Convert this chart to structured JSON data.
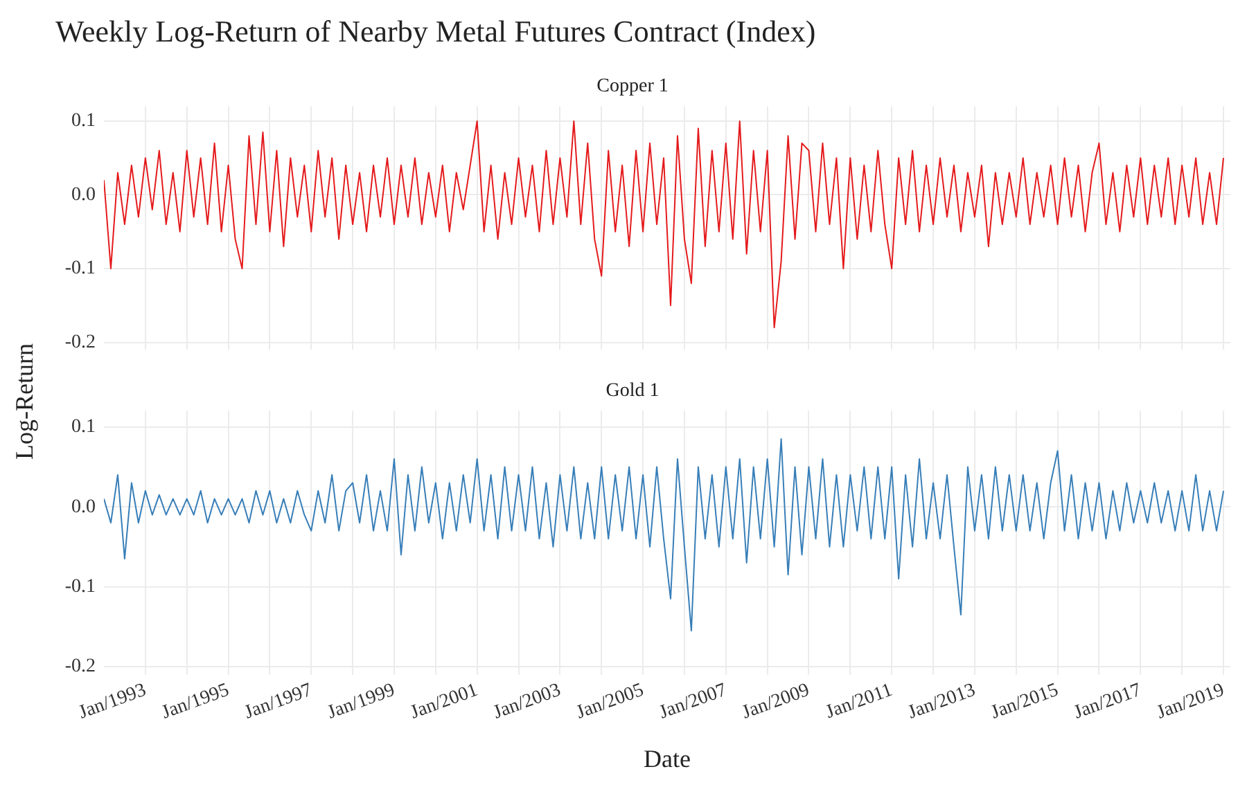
{
  "chart_data": [
    {
      "type": "line",
      "title": "Weekly Log-Return of Nearby Metal Futures Contract (Index)",
      "subtitle": "Copper 1",
      "tick_labels": "y",
      "grid": true,
      "xlim": [
        "1992-01",
        "2019-03"
      ],
      "xticks": [
        {
          "value": "1993-01",
          "label": null
        },
        {
          "value": "1994-01",
          "label": null
        },
        {
          "value": "1995-01",
          "label": null
        },
        {
          "value": "1996-01",
          "label": null
        },
        {
          "value": "1997-01",
          "label": null
        },
        {
          "value": "1998-01",
          "label": null
        },
        {
          "value": "1999-01",
          "label": null
        },
        {
          "value": "2000-01",
          "label": null
        },
        {
          "value": "2001-01",
          "label": null
        },
        {
          "value": "2002-01",
          "label": null
        },
        {
          "value": "2003-01",
          "label": null
        },
        {
          "value": "2004-01",
          "label": null
        },
        {
          "value": "2005-01",
          "label": null
        },
        {
          "value": "2006-01",
          "label": null
        },
        {
          "value": "2007-01",
          "label": null
        },
        {
          "value": "2008-01",
          "label": null
        },
        {
          "value": "2009-01",
          "label": null
        },
        {
          "value": "2010-01",
          "label": null
        },
        {
          "value": "2011-01",
          "label": null
        },
        {
          "value": "2012-01",
          "label": null
        },
        {
          "value": "2013-01",
          "label": null
        },
        {
          "value": "2014-01",
          "label": null
        },
        {
          "value": "2015-01",
          "label": null
        },
        {
          "value": "2016-01",
          "label": null
        },
        {
          "value": "2017-01",
          "label": null
        },
        {
          "value": "2018-01",
          "label": null
        },
        {
          "value": "2019-01",
          "label": null
        }
      ],
      "ylim": [
        -0.21,
        0.12
      ],
      "yticks": [
        {
          "value": -0.2,
          "label": "-0.2"
        },
        {
          "value": -0.1,
          "label": "-0.1"
        },
        {
          "value": 0,
          "label": "0.0"
        },
        {
          "value": 0.1,
          "label": "0.1"
        }
      ],
      "x": [
        "1992-01",
        "1992-03",
        "1992-05",
        "1992-07",
        "1992-09",
        "1992-11",
        "1993-01",
        "1993-03",
        "1993-05",
        "1993-07",
        "1993-09",
        "1993-11",
        "1994-01",
        "1994-03",
        "1994-05",
        "1994-07",
        "1994-09",
        "1994-11",
        "1995-01",
        "1995-03",
        "1995-05",
        "1995-07",
        "1995-09",
        "1995-11",
        "1996-01",
        "1996-03",
        "1996-05",
        "1996-07",
        "1996-09",
        "1996-11",
        "1997-01",
        "1997-03",
        "1997-05",
        "1997-07",
        "1997-09",
        "1997-11",
        "1998-01",
        "1998-03",
        "1998-05",
        "1998-07",
        "1998-09",
        "1998-11",
        "1999-01",
        "1999-03",
        "1999-05",
        "1999-07",
        "1999-09",
        "1999-11",
        "2000-01",
        "2000-03",
        "2000-05",
        "2000-07",
        "2000-09",
        "2000-11",
        "2001-01",
        "2001-03",
        "2001-05",
        "2001-07",
        "2001-09",
        "2001-11",
        "2002-01",
        "2002-03",
        "2002-05",
        "2002-07",
        "2002-09",
        "2002-11",
        "2003-01",
        "2003-03",
        "2003-05",
        "2003-07",
        "2003-09",
        "2003-11",
        "2004-01",
        "2004-03",
        "2004-05",
        "2004-07",
        "2004-09",
        "2004-11",
        "2005-01",
        "2005-03",
        "2005-05",
        "2005-07",
        "2005-09",
        "2005-11",
        "2006-01",
        "2006-03",
        "2006-05",
        "2006-07",
        "2006-09",
        "2006-11",
        "2007-01",
        "2007-03",
        "2007-05",
        "2007-07",
        "2007-09",
        "2007-11",
        "2008-01",
        "2008-03",
        "2008-05",
        "2008-07",
        "2008-09",
        "2008-11",
        "2009-01",
        "2009-03",
        "2009-05",
        "2009-07",
        "2009-09",
        "2009-11",
        "2010-01",
        "2010-03",
        "2010-05",
        "2010-07",
        "2010-09",
        "2010-11",
        "2011-01",
        "2011-03",
        "2011-05",
        "2011-07",
        "2011-09",
        "2011-11",
        "2012-01",
        "2012-03",
        "2012-05",
        "2012-07",
        "2012-09",
        "2012-11",
        "2013-01",
        "2013-03",
        "2013-05",
        "2013-07",
        "2013-09",
        "2013-11",
        "2014-01",
        "2014-03",
        "2014-05",
        "2014-07",
        "2014-09",
        "2014-11",
        "2015-01",
        "2015-03",
        "2015-05",
        "2015-07",
        "2015-09",
        "2015-11",
        "2016-01",
        "2016-03",
        "2016-05",
        "2016-07",
        "2016-09",
        "2016-11",
        "2017-01",
        "2017-03",
        "2017-05",
        "2017-07",
        "2017-09",
        "2017-11",
        "2018-01",
        "2018-03",
        "2018-05",
        "2018-07",
        "2018-09",
        "2018-11",
        "2019-01"
      ],
      "series": [
        {
          "color": "#e41a1c",
          "values": [
            0.02,
            -0.1,
            0.03,
            -0.04,
            0.04,
            -0.03,
            0.05,
            -0.02,
            0.06,
            -0.04,
            0.03,
            -0.05,
            0.06,
            -0.03,
            0.05,
            -0.04,
            0.07,
            -0.05,
            0.04,
            -0.06,
            -0.1,
            0.08,
            -0.04,
            0.085,
            -0.05,
            0.06,
            -0.07,
            0.05,
            -0.03,
            0.04,
            -0.05,
            0.06,
            -0.03,
            0.05,
            -0.06,
            0.04,
            -0.04,
            0.03,
            -0.05,
            0.04,
            -0.03,
            0.05,
            -0.04,
            0.04,
            -0.03,
            0.05,
            -0.04,
            0.03,
            -0.03,
            0.04,
            -0.05,
            0.03,
            -0.02,
            0.04,
            0.1,
            -0.05,
            0.04,
            -0.06,
            0.03,
            -0.04,
            0.05,
            -0.03,
            0.04,
            -0.05,
            0.06,
            -0.04,
            0.05,
            -0.03,
            0.1,
            -0.04,
            0.07,
            -0.06,
            -0.11,
            0.06,
            -0.05,
            0.04,
            -0.07,
            0.06,
            -0.05,
            0.07,
            -0.04,
            0.05,
            -0.15,
            0.08,
            -0.06,
            -0.12,
            0.09,
            -0.07,
            0.06,
            -0.05,
            0.07,
            -0.06,
            0.1,
            -0.08,
            0.06,
            -0.05,
            0.06,
            -0.18,
            -0.09,
            0.08,
            -0.06,
            0.07,
            0.06,
            -0.05,
            0.07,
            -0.04,
            0.05,
            -0.1,
            0.05,
            -0.06,
            0.04,
            -0.05,
            0.06,
            -0.04,
            -0.1,
            0.05,
            -0.04,
            0.06,
            -0.05,
            0.04,
            -0.04,
            0.05,
            -0.03,
            0.04,
            -0.05,
            0.03,
            -0.03,
            0.04,
            -0.07,
            0.03,
            -0.04,
            0.03,
            -0.03,
            0.05,
            -0.04,
            0.03,
            -0.03,
            0.04,
            -0.04,
            0.05,
            -0.03,
            0.04,
            -0.05,
            0.03,
            0.07,
            -0.04,
            0.03,
            -0.05,
            0.04,
            -0.03,
            0.05,
            -0.04,
            0.04,
            -0.03,
            0.05,
            -0.04,
            0.04,
            -0.03,
            0.05,
            -0.04,
            0.03,
            -0.04,
            0.05
          ]
        }
      ]
    },
    {
      "type": "line",
      "title": "Gold 1",
      "xlabel": "Date",
      "ylabel": "Log-Return",
      "grid": true,
      "xlim": [
        "1992-01",
        "2019-03"
      ],
      "xticks": [
        {
          "value": "1993-01",
          "label": "Jan/1993"
        },
        {
          "value": "1994-01",
          "label": null
        },
        {
          "value": "1995-01",
          "label": "Jan/1995"
        },
        {
          "value": "1996-01",
          "label": null
        },
        {
          "value": "1997-01",
          "label": "Jan/1997"
        },
        {
          "value": "1998-01",
          "label": null
        },
        {
          "value": "1999-01",
          "label": "Jan/1999"
        },
        {
          "value": "2000-01",
          "label": null
        },
        {
          "value": "2001-01",
          "label": "Jan/2001"
        },
        {
          "value": "2002-01",
          "label": null
        },
        {
          "value": "2003-01",
          "label": "Jan/2003"
        },
        {
          "value": "2004-01",
          "label": null
        },
        {
          "value": "2005-01",
          "label": "Jan/2005"
        },
        {
          "value": "2006-01",
          "label": null
        },
        {
          "value": "2007-01",
          "label": "Jan/2007"
        },
        {
          "value": "2008-01",
          "label": null
        },
        {
          "value": "2009-01",
          "label": "Jan/2009"
        },
        {
          "value": "2010-01",
          "label": null
        },
        {
          "value": "2011-01",
          "label": "Jan/2011"
        },
        {
          "value": "2012-01",
          "label": null
        },
        {
          "value": "2013-01",
          "label": "Jan/2013"
        },
        {
          "value": "2014-01",
          "label": null
        },
        {
          "value": "2015-01",
          "label": "Jan/2015"
        },
        {
          "value": "2016-01",
          "label": null
        },
        {
          "value": "2017-01",
          "label": "Jan/2017"
        },
        {
          "value": "2018-01",
          "label": null
        },
        {
          "value": "2019-01",
          "label": "Jan/2019"
        }
      ],
      "ylim": [
        -0.21,
        0.12
      ],
      "yticks": [
        {
          "value": -0.2,
          "label": "-0.2"
        },
        {
          "value": -0.1,
          "label": "-0.1"
        },
        {
          "value": 0,
          "label": "0.0"
        },
        {
          "value": 0.1,
          "label": "0.1"
        }
      ],
      "x": [
        "1992-01",
        "1992-03",
        "1992-05",
        "1992-07",
        "1992-09",
        "1992-11",
        "1993-01",
        "1993-03",
        "1993-05",
        "1993-07",
        "1993-09",
        "1993-11",
        "1994-01",
        "1994-03",
        "1994-05",
        "1994-07",
        "1994-09",
        "1994-11",
        "1995-01",
        "1995-03",
        "1995-05",
        "1995-07",
        "1995-09",
        "1995-11",
        "1996-01",
        "1996-03",
        "1996-05",
        "1996-07",
        "1996-09",
        "1996-11",
        "1997-01",
        "1997-03",
        "1997-05",
        "1997-07",
        "1997-09",
        "1997-11",
        "1998-01",
        "1998-03",
        "1998-05",
        "1998-07",
        "1998-09",
        "1998-11",
        "1999-01",
        "1999-03",
        "1999-05",
        "1999-07",
        "1999-09",
        "1999-11",
        "2000-01",
        "2000-03",
        "2000-05",
        "2000-07",
        "2000-09",
        "2000-11",
        "2001-01",
        "2001-03",
        "2001-05",
        "2001-07",
        "2001-09",
        "2001-11",
        "2002-01",
        "2002-03",
        "2002-05",
        "2002-07",
        "2002-09",
        "2002-11",
        "2003-01",
        "2003-03",
        "2003-05",
        "2003-07",
        "2003-09",
        "2003-11",
        "2004-01",
        "2004-03",
        "2004-05",
        "2004-07",
        "2004-09",
        "2004-11",
        "2005-01",
        "2005-03",
        "2005-05",
        "2005-07",
        "2005-09",
        "2005-11",
        "2006-01",
        "2006-03",
        "2006-05",
        "2006-07",
        "2006-09",
        "2006-11",
        "2007-01",
        "2007-03",
        "2007-05",
        "2007-07",
        "2007-09",
        "2007-11",
        "2008-01",
        "2008-03",
        "2008-05",
        "2008-07",
        "2008-09",
        "2008-11",
        "2009-01",
        "2009-03",
        "2009-05",
        "2009-07",
        "2009-09",
        "2009-11",
        "2010-01",
        "2010-03",
        "2010-05",
        "2010-07",
        "2010-09",
        "2010-11",
        "2011-01",
        "2011-03",
        "2011-05",
        "2011-07",
        "2011-09",
        "2011-11",
        "2012-01",
        "2012-03",
        "2012-05",
        "2012-07",
        "2012-09",
        "2012-11",
        "2013-01",
        "2013-03",
        "2013-05",
        "2013-07",
        "2013-09",
        "2013-11",
        "2014-01",
        "2014-03",
        "2014-05",
        "2014-07",
        "2014-09",
        "2014-11",
        "2015-01",
        "2015-03",
        "2015-05",
        "2015-07",
        "2015-09",
        "2015-11",
        "2016-01",
        "2016-03",
        "2016-05",
        "2016-07",
        "2016-09",
        "2016-11",
        "2017-01",
        "2017-03",
        "2017-05",
        "2017-07",
        "2017-09",
        "2017-11",
        "2018-01",
        "2018-03",
        "2018-05",
        "2018-07",
        "2018-09",
        "2018-11",
        "2019-01"
      ],
      "series": [
        {
          "color": "#377eb8",
          "values": [
            0.01,
            -0.02,
            0.04,
            -0.065,
            0.03,
            -0.02,
            0.02,
            -0.01,
            0.015,
            -0.01,
            0.01,
            -0.01,
            0.01,
            -0.01,
            0.02,
            -0.02,
            0.01,
            -0.01,
            0.01,
            -0.01,
            0.01,
            -0.02,
            0.02,
            -0.01,
            0.02,
            -0.02,
            0.01,
            -0.02,
            0.02,
            -0.01,
            -0.03,
            0.02,
            -0.02,
            0.04,
            -0.03,
            0.02,
            0.03,
            -0.02,
            0.04,
            -0.03,
            0.02,
            -0.03,
            0.06,
            -0.06,
            0.04,
            -0.03,
            0.05,
            -0.02,
            0.03,
            -0.04,
            0.03,
            -0.03,
            0.04,
            -0.02,
            0.06,
            -0.03,
            0.04,
            -0.04,
            0.05,
            -0.03,
            0.04,
            -0.03,
            0.05,
            -0.04,
            0.03,
            -0.05,
            0.04,
            -0.03,
            0.05,
            -0.04,
            0.03,
            -0.04,
            0.05,
            -0.04,
            0.04,
            -0.03,
            0.05,
            -0.04,
            0.04,
            -0.05,
            0.05,
            -0.04,
            -0.115,
            0.06,
            -0.05,
            -0.155,
            0.05,
            -0.04,
            0.04,
            -0.05,
            0.05,
            -0.04,
            0.06,
            -0.07,
            0.05,
            -0.04,
            0.06,
            -0.05,
            0.085,
            -0.085,
            0.05,
            -0.06,
            0.05,
            -0.04,
            0.06,
            -0.05,
            0.04,
            -0.05,
            0.04,
            -0.03,
            0.05,
            -0.04,
            0.05,
            -0.04,
            0.05,
            -0.09,
            0.04,
            -0.05,
            0.06,
            -0.04,
            0.03,
            -0.04,
            0.04,
            -0.05,
            -0.135,
            0.05,
            -0.03,
            0.04,
            -0.04,
            0.05,
            -0.03,
            0.04,
            -0.03,
            0.04,
            -0.03,
            0.03,
            -0.04,
            0.03,
            0.07,
            -0.03,
            0.04,
            -0.04,
            0.03,
            -0.03,
            0.03,
            -0.04,
            0.02,
            -0.03,
            0.03,
            -0.02,
            0.02,
            -0.02,
            0.03,
            -0.02,
            0.02,
            -0.03,
            0.02,
            -0.03,
            0.04,
            -0.03,
            0.02,
            -0.03,
            0.02
          ]
        }
      ]
    }
  ]
}
